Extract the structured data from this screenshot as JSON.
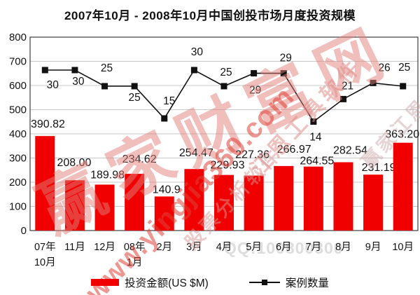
{
  "watermarks": {
    "brand_large": "赢家财富网",
    "url": "www.yingjia360.com",
    "tool": "江恩工具软件",
    "software": "股票分析软件",
    "company": "赢家江恩软件",
    "qq": "QQ:100800300"
  },
  "chart_data": {
    "type": "bar",
    "title": "2007年10月 - 2008年10月中国创投市场月度投资规模",
    "categories": [
      "07年\n10月",
      "11月",
      "12月",
      "08年\n1月",
      "2月",
      "3月",
      "4月",
      "5月",
      "6月",
      "7月",
      "8月",
      "9月",
      "10月"
    ],
    "series": [
      {
        "name": "投资金额(US $M)",
        "type": "bar",
        "color": "#f00000",
        "values": [
          390.82,
          208,
          189.98,
          234.62,
          140.9,
          254.47,
          229.93,
          227.36,
          266.97,
          264.55,
          282.54,
          231.19,
          363.2
        ],
        "value_labels": [
          "390.82",
          "208.00",
          "189.98",
          "234.62",
          "140.9",
          "254.47",
          "229.93",
          "227.36",
          "266.97",
          "264.55",
          "282.54",
          "231.19",
          "363.20"
        ]
      },
      {
        "name": "案例数量",
        "type": "line",
        "color": "#111111",
        "values": [
          30,
          30,
          25,
          25,
          15,
          30,
          25,
          29,
          29,
          14,
          21,
          26,
          25
        ]
      }
    ],
    "xlabel": "",
    "ylabel": "",
    "ylim": [
      0,
      800
    ],
    "ytick_step": 100,
    "grid": true,
    "legend_position": "bottom"
  }
}
